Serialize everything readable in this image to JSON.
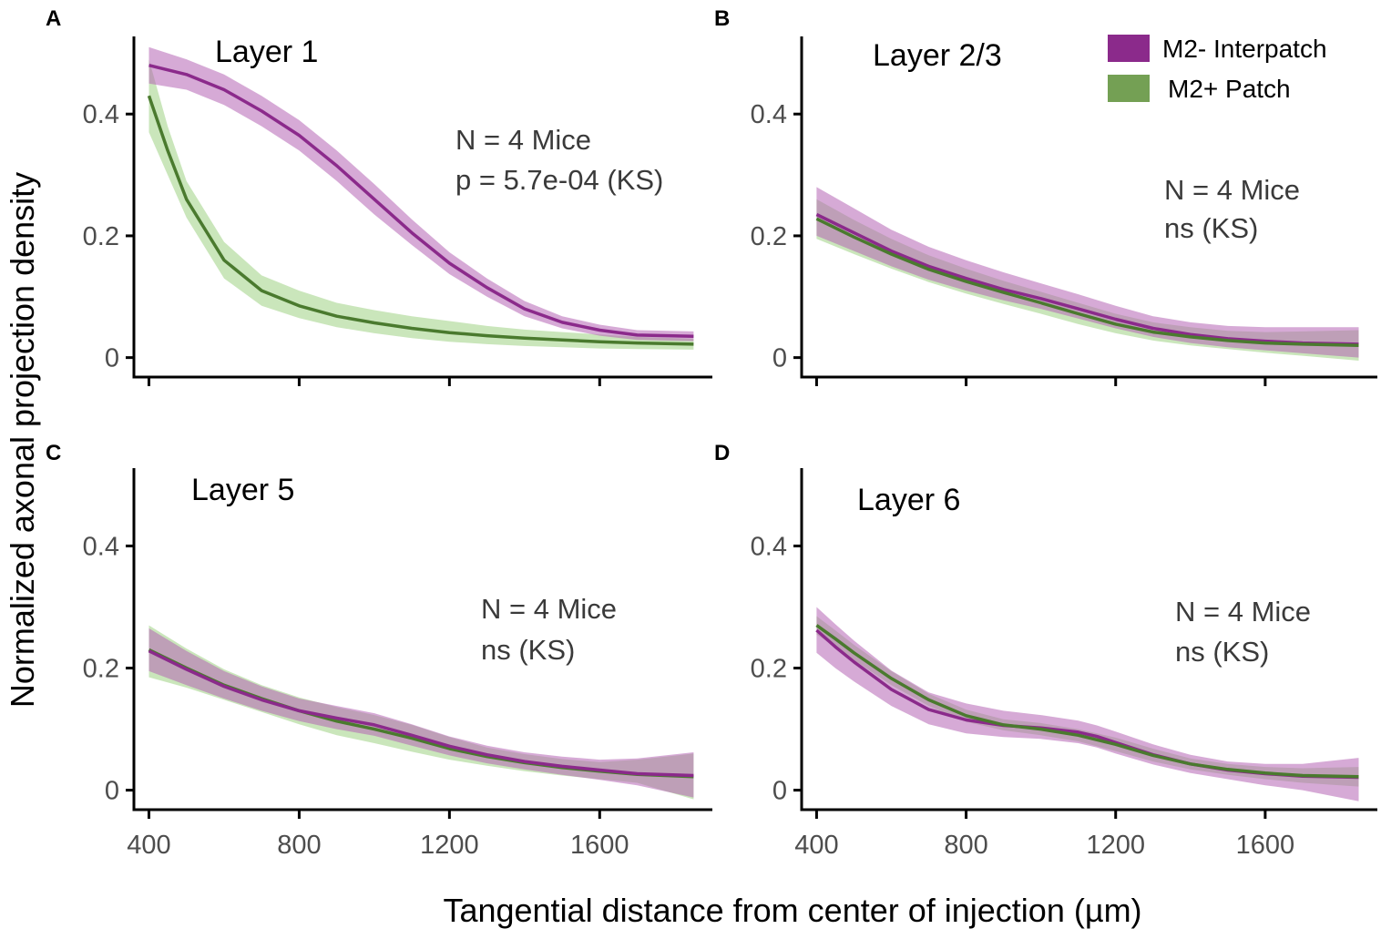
{
  "figure": {
    "ylabel": "Normalized axonal projection density",
    "xlabel": "Tangential distance from center of injection (µm)"
  },
  "colors": {
    "interpatch_line": "#8b2a8b",
    "interpatch_band": "#b565b5",
    "patch_line": "#4a7a2e",
    "patch_band": "#9ed184",
    "legend_interpatch": "#8b2a8b",
    "legend_patch": "#74a054"
  },
  "legend": {
    "items": [
      {
        "label": "M2- Interpatch",
        "color": "#8b2a8b"
      },
      {
        "label": "M2+ Patch",
        "color": "#74a054"
      }
    ]
  },
  "chart_data": [
    {
      "panel": "A",
      "type": "line",
      "title": "Layer 1",
      "annotation": [
        "N = 4 Mice",
        "p = 5.7e-04 (KS)"
      ],
      "xlim": [
        360,
        1900
      ],
      "ylim": [
        -0.02,
        0.52
      ],
      "xticks": [
        400,
        800,
        1200,
        1600
      ],
      "xtick_labels": [
        "",
        "",
        "",
        ""
      ],
      "yticks": [
        0,
        0.2,
        0.4
      ],
      "ytick_labels": [
        "0",
        "0.2",
        "0.4"
      ],
      "series": [
        {
          "name": "M2- Interpatch",
          "x": [
            400,
            500,
            600,
            700,
            800,
            900,
            1000,
            1100,
            1200,
            1300,
            1400,
            1500,
            1600,
            1700,
            1850
          ],
          "y": [
            0.48,
            0.465,
            0.44,
            0.405,
            0.365,
            0.315,
            0.26,
            0.205,
            0.155,
            0.115,
            0.08,
            0.058,
            0.045,
            0.037,
            0.035
          ],
          "lower": [
            0.45,
            0.44,
            0.415,
            0.38,
            0.34,
            0.29,
            0.235,
            0.185,
            0.137,
            0.1,
            0.068,
            0.048,
            0.036,
            0.029,
            0.027
          ],
          "upper": [
            0.51,
            0.49,
            0.465,
            0.43,
            0.39,
            0.34,
            0.285,
            0.227,
            0.173,
            0.13,
            0.093,
            0.068,
            0.054,
            0.045,
            0.043
          ]
        },
        {
          "name": "M2+ Patch",
          "x": [
            400,
            450,
            500,
            600,
            700,
            800,
            900,
            1000,
            1100,
            1200,
            1300,
            1400,
            1500,
            1600,
            1700,
            1850
          ],
          "y": [
            0.43,
            0.34,
            0.26,
            0.16,
            0.11,
            0.085,
            0.068,
            0.057,
            0.048,
            0.041,
            0.036,
            0.032,
            0.029,
            0.026,
            0.024,
            0.022
          ],
          "lower": [
            0.37,
            0.3,
            0.23,
            0.13,
            0.085,
            0.065,
            0.05,
            0.04,
            0.032,
            0.026,
            0.022,
            0.019,
            0.017,
            0.015,
            0.014,
            0.013
          ],
          "upper": [
            0.49,
            0.38,
            0.29,
            0.19,
            0.135,
            0.11,
            0.09,
            0.078,
            0.068,
            0.06,
            0.052,
            0.046,
            0.042,
            0.038,
            0.034,
            0.031
          ]
        }
      ]
    },
    {
      "panel": "B",
      "type": "line",
      "title": "Layer 2/3",
      "annotation": [
        "N = 4 Mice",
        "ns (KS)"
      ],
      "xlim": [
        360,
        1900
      ],
      "ylim": [
        -0.02,
        0.52
      ],
      "xticks": [
        400,
        800,
        1200,
        1600
      ],
      "xtick_labels": [
        "",
        "",
        "",
        ""
      ],
      "yticks": [
        0,
        0.2,
        0.4
      ],
      "ytick_labels": [
        "0",
        "0.2",
        "0.4"
      ],
      "series": [
        {
          "name": "M2- Interpatch",
          "x": [
            400,
            500,
            600,
            700,
            800,
            900,
            1000,
            1100,
            1200,
            1300,
            1400,
            1500,
            1600,
            1700,
            1850
          ],
          "y": [
            0.235,
            0.205,
            0.175,
            0.15,
            0.13,
            0.112,
            0.097,
            0.08,
            0.063,
            0.048,
            0.038,
            0.031,
            0.027,
            0.024,
            0.022
          ],
          "lower": [
            0.2,
            0.175,
            0.15,
            0.128,
            0.11,
            0.094,
            0.08,
            0.064,
            0.048,
            0.034,
            0.024,
            0.017,
            0.012,
            0.007,
            0.0
          ],
          "upper": [
            0.28,
            0.245,
            0.21,
            0.182,
            0.16,
            0.14,
            0.122,
            0.104,
            0.085,
            0.068,
            0.058,
            0.052,
            0.05,
            0.05,
            0.05
          ]
        },
        {
          "name": "M2+ Patch",
          "x": [
            400,
            500,
            600,
            700,
            800,
            900,
            1000,
            1100,
            1200,
            1300,
            1400,
            1500,
            1600,
            1700,
            1850
          ],
          "y": [
            0.228,
            0.198,
            0.17,
            0.145,
            0.125,
            0.107,
            0.09,
            0.072,
            0.055,
            0.042,
            0.034,
            0.028,
            0.024,
            0.022,
            0.02
          ],
          "lower": [
            0.195,
            0.17,
            0.146,
            0.124,
            0.105,
            0.088,
            0.072,
            0.055,
            0.04,
            0.028,
            0.02,
            0.014,
            0.008,
            0.003,
            -0.005
          ],
          "upper": [
            0.26,
            0.226,
            0.195,
            0.168,
            0.146,
            0.126,
            0.108,
            0.09,
            0.072,
            0.058,
            0.05,
            0.044,
            0.042,
            0.043,
            0.045
          ]
        }
      ]
    },
    {
      "panel": "C",
      "type": "line",
      "title": "Layer 5",
      "annotation": [
        "N = 4 Mice",
        "ns (KS)"
      ],
      "xlim": [
        360,
        1900
      ],
      "ylim": [
        -0.02,
        0.52
      ],
      "xticks": [
        400,
        800,
        1200,
        1600
      ],
      "xtick_labels": [
        "400",
        "800",
        "1200",
        "1600"
      ],
      "yticks": [
        0,
        0.2,
        0.4
      ],
      "ytick_labels": [
        "0",
        "0.2",
        "0.4"
      ],
      "series": [
        {
          "name": "M2- Interpatch",
          "x": [
            400,
            500,
            600,
            700,
            800,
            900,
            1000,
            1100,
            1200,
            1300,
            1400,
            1500,
            1600,
            1700,
            1850
          ],
          "y": [
            0.228,
            0.198,
            0.17,
            0.148,
            0.13,
            0.118,
            0.107,
            0.09,
            0.072,
            0.058,
            0.047,
            0.039,
            0.033,
            0.027,
            0.024
          ],
          "lower": [
            0.195,
            0.172,
            0.15,
            0.13,
            0.113,
            0.1,
            0.089,
            0.073,
            0.057,
            0.044,
            0.034,
            0.025,
            0.017,
            0.008,
            -0.012
          ],
          "upper": [
            0.265,
            0.228,
            0.195,
            0.17,
            0.15,
            0.138,
            0.126,
            0.108,
            0.088,
            0.073,
            0.062,
            0.055,
            0.05,
            0.052,
            0.062
          ]
        },
        {
          "name": "M2+ Patch",
          "x": [
            400,
            500,
            600,
            700,
            800,
            900,
            1000,
            1100,
            1200,
            1300,
            1400,
            1500,
            1600,
            1700,
            1850
          ],
          "y": [
            0.23,
            0.2,
            0.172,
            0.15,
            0.13,
            0.113,
            0.1,
            0.085,
            0.068,
            0.055,
            0.045,
            0.037,
            0.031,
            0.026,
            0.022
          ],
          "lower": [
            0.185,
            0.168,
            0.148,
            0.128,
            0.108,
            0.09,
            0.077,
            0.063,
            0.05,
            0.04,
            0.031,
            0.024,
            0.018,
            0.012,
            -0.015
          ],
          "upper": [
            0.27,
            0.232,
            0.198,
            0.172,
            0.152,
            0.136,
            0.123,
            0.107,
            0.087,
            0.07,
            0.059,
            0.051,
            0.046,
            0.05,
            0.06
          ]
        }
      ]
    },
    {
      "panel": "D",
      "type": "line",
      "title": "Layer 6",
      "annotation": [
        "N = 4 Mice",
        "ns (KS)"
      ],
      "xlim": [
        360,
        1900
      ],
      "ylim": [
        -0.02,
        0.52
      ],
      "xticks": [
        400,
        800,
        1200,
        1600
      ],
      "xtick_labels": [
        "400",
        "800",
        "1200",
        "1600"
      ],
      "yticks": [
        0,
        0.2,
        0.4
      ],
      "ytick_labels": [
        "0",
        "0.2",
        "0.4"
      ],
      "series": [
        {
          "name": "M2- Interpatch",
          "x": [
            400,
            450,
            500,
            600,
            700,
            800,
            900,
            1000,
            1100,
            1150,
            1200,
            1300,
            1400,
            1500,
            1600,
            1700,
            1850
          ],
          "y": [
            0.262,
            0.235,
            0.21,
            0.165,
            0.132,
            0.115,
            0.106,
            0.102,
            0.095,
            0.088,
            0.078,
            0.058,
            0.043,
            0.033,
            0.027,
            0.023,
            0.021
          ],
          "lower": [
            0.225,
            0.2,
            0.178,
            0.138,
            0.108,
            0.093,
            0.087,
            0.084,
            0.077,
            0.07,
            0.06,
            0.042,
            0.028,
            0.018,
            0.008,
            0.0,
            -0.018
          ],
          "upper": [
            0.3,
            0.272,
            0.245,
            0.196,
            0.16,
            0.142,
            0.13,
            0.123,
            0.114,
            0.106,
            0.096,
            0.075,
            0.058,
            0.047,
            0.043,
            0.043,
            0.053
          ]
        },
        {
          "name": "M2+ Patch",
          "x": [
            400,
            450,
            500,
            600,
            700,
            800,
            900,
            1000,
            1100,
            1200,
            1300,
            1400,
            1500,
            1600,
            1700,
            1850
          ],
          "y": [
            0.27,
            0.248,
            0.225,
            0.183,
            0.148,
            0.122,
            0.107,
            0.1,
            0.09,
            0.075,
            0.057,
            0.043,
            0.034,
            0.028,
            0.024,
            0.022
          ],
          "lower": [
            0.255,
            0.235,
            0.213,
            0.172,
            0.138,
            0.112,
            0.098,
            0.09,
            0.08,
            0.064,
            0.047,
            0.034,
            0.025,
            0.018,
            0.012,
            0.006
          ],
          "upper": [
            0.285,
            0.262,
            0.238,
            0.195,
            0.158,
            0.132,
            0.116,
            0.11,
            0.1,
            0.086,
            0.068,
            0.052,
            0.043,
            0.038,
            0.036,
            0.038
          ]
        }
      ]
    }
  ]
}
